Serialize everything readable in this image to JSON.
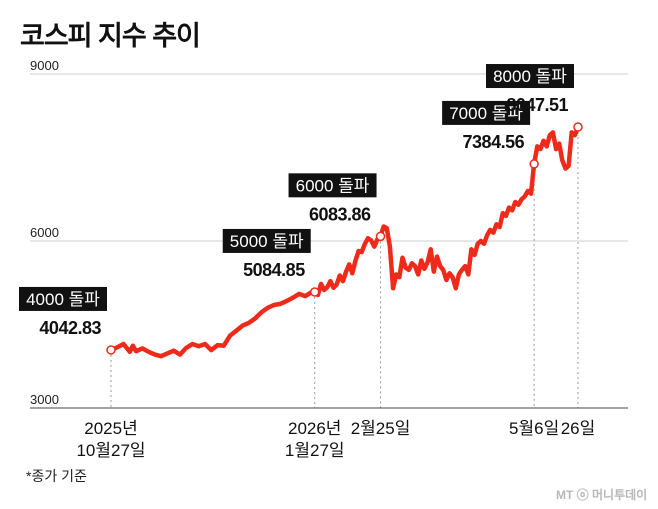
{
  "chart_data": {
    "type": "line",
    "title": "코스피 지수 추이",
    "xlabel": "",
    "ylabel": "",
    "ylim": [
      3000,
      9000
    ],
    "yticks": [
      9000,
      6000,
      3000
    ],
    "grid": true,
    "line_color": "#ee2a1b",
    "x_tick_labels": [
      {
        "x": 0,
        "label": "2025년\n10월27일"
      },
      {
        "x": 65,
        "label": "2026년\n1월27일"
      },
      {
        "x": 86,
        "label": "2월25일"
      },
      {
        "x": 135,
        "label": "5월6일"
      },
      {
        "x": 149,
        "label": "26일"
      }
    ],
    "annotations": [
      {
        "x": 0,
        "y": 4042.83,
        "badge": "4000 돌파",
        "value": "4042.83"
      },
      {
        "x": 65,
        "y": 5084.85,
        "badge": "5000 돌파",
        "value": "5084.85"
      },
      {
        "x": 86,
        "y": 6083.86,
        "badge": "6000 돌파",
        "value": "6083.86"
      },
      {
        "x": 135,
        "y": 7384.56,
        "badge": "7000 돌파",
        "value": "7384.56"
      },
      {
        "x": 149,
        "y": 8047.51,
        "badge": "8000 돌파",
        "value": "8047.51"
      }
    ],
    "series": [
      {
        "x": [
          0,
          2,
          4,
          6,
          7,
          8,
          10,
          12,
          14,
          16,
          18,
          20,
          22,
          24,
          26,
          28,
          30,
          32,
          34,
          36,
          38,
          40,
          42,
          44,
          46,
          48,
          50,
          52,
          54,
          56,
          58,
          60,
          62,
          64,
          65,
          66,
          67,
          68,
          69,
          70,
          71,
          72,
          73,
          74,
          75,
          76,
          77,
          78,
          79,
          80,
          81,
          82,
          83,
          84,
          85,
          86,
          87,
          88,
          89,
          90,
          91,
          92,
          93,
          94,
          95,
          96,
          97,
          98,
          99,
          100,
          101,
          102,
          103,
          104,
          105,
          106,
          107,
          108,
          109,
          110,
          111,
          112,
          113,
          114,
          115,
          116,
          117,
          118,
          119,
          120,
          121,
          122,
          123,
          124,
          125,
          126,
          127,
          128,
          129,
          130,
          131,
          132,
          133,
          134,
          135,
          136,
          137,
          138,
          139,
          140,
          141,
          142,
          143,
          144,
          145,
          146,
          147,
          148,
          149
        ],
        "y": [
          4042.83,
          4090,
          4150,
          4010,
          4120,
          4020,
          4070,
          4010,
          3960,
          3930,
          3980,
          4030,
          3960,
          4080,
          4150,
          4110,
          4150,
          4040,
          4130,
          4120,
          4300,
          4390,
          4480,
          4530,
          4610,
          4720,
          4800,
          4850,
          4870,
          4920,
          4980,
          5050,
          5010,
          5080,
          5084.85,
          5030,
          5230,
          5120,
          5170,
          5280,
          5160,
          5220,
          5380,
          5280,
          5450,
          5580,
          5420,
          5650,
          5820,
          5800,
          5950,
          6050,
          6010,
          5900,
          6030,
          6083.86,
          6260,
          6230,
          5900,
          5150,
          5400,
          5350,
          5700,
          5520,
          5480,
          5600,
          5550,
          5400,
          5650,
          5500,
          5620,
          5850,
          5450,
          5720,
          5550,
          5480,
          5300,
          5420,
          5350,
          5150,
          5400,
          5480,
          5550,
          5400,
          5850,
          5750,
          5950,
          6000,
          5950,
          6100,
          6200,
          6150,
          6300,
          6250,
          6500,
          6450,
          6600,
          6550,
          6700,
          6650,
          6750,
          6800,
          6900,
          6850,
          7384.56,
          7700,
          7650,
          7800,
          7700,
          7900,
          7950,
          7650,
          7750,
          7450,
          7300,
          7350,
          7950,
          7900,
          8047.51
        ]
      }
    ]
  },
  "footnote": "*종가 기준",
  "watermark": "MT ⓞ 머니투데이"
}
